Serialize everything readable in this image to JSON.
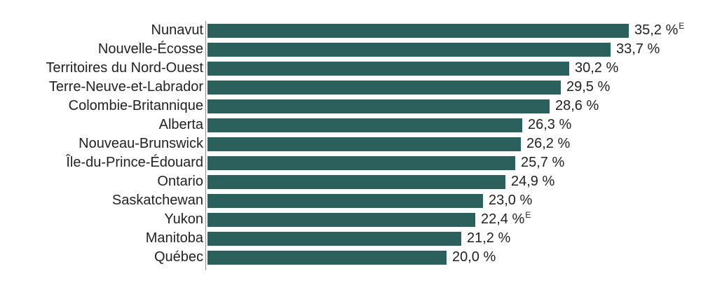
{
  "page": {
    "background_color": "#ffffff"
  },
  "chart_data": {
    "type": "bar",
    "orientation": "horizontal",
    "title": "",
    "xlabel": "",
    "ylabel": "",
    "xlim": [
      0,
      37.7
    ],
    "grid": false,
    "legend": false,
    "bar_color": "#2b605d",
    "axis_line_color": "#8c8c8c",
    "text_color": "#222222",
    "value_suffix": " %",
    "estimate_symbol": "E",
    "categories": [
      "Nunavut",
      "Nouvelle-Écosse",
      "Territoires du Nord-Ouest",
      "Terre-Neuve-et-Labrador",
      "Colombie-Britannique",
      "Alberta",
      "Nouveau-Brunswick",
      "Île-du-Prince-Édouard",
      "Ontario",
      "Saskatchewan",
      "Yukon",
      "Manitoba",
      "Québec"
    ],
    "values": [
      35.2,
      33.7,
      30.2,
      29.5,
      28.6,
      26.3,
      26.2,
      25.7,
      24.9,
      23.0,
      22.4,
      21.2,
      20.0
    ],
    "display_values": [
      "35,2 %",
      "33,7 %",
      "30,2 %",
      "29,5 %",
      "28,6 %",
      "26,3 %",
      "26,2 %",
      "25,7 %",
      "24,9 %",
      "23,0 %",
      "22,4 %",
      "21,2 %",
      "20,0 %"
    ],
    "estimate_flags": [
      true,
      false,
      false,
      false,
      false,
      false,
      false,
      false,
      false,
      false,
      true,
      false,
      false
    ]
  }
}
